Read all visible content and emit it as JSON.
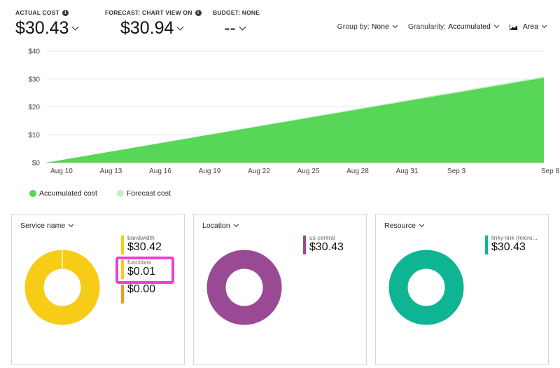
{
  "kpis": [
    {
      "label": "ACTUAL COST",
      "value": "$30.43",
      "has_info": true
    },
    {
      "label": "FORECAST: CHART VIEW ON",
      "value": "$30.94",
      "has_info": true
    },
    {
      "label": "BUDGET: NONE",
      "value": "--",
      "has_info": false
    }
  ],
  "toolbar": {
    "group_by_label": "Group by:",
    "group_by_value": "None",
    "granularity_label": "Granularity:",
    "granularity_value": "Accumulated",
    "chart_type_value": "Area"
  },
  "chart_data": {
    "type": "area",
    "x_ticks": [
      "Aug 10",
      "Aug 13",
      "Aug 16",
      "Aug 19",
      "Aug 22",
      "Aug 25",
      "Aug 28",
      "Aug 31",
      "Sep 3",
      "Sep 8"
    ],
    "y_ticks": [
      "$0",
      "$10",
      "$20",
      "$30",
      "$40"
    ],
    "ylim": [
      0,
      40
    ],
    "grid": true,
    "series": [
      {
        "name": "Accumulated cost",
        "color": "#57d657",
        "x_start_day": 0,
        "x_end_day": 30,
        "y_start": 0,
        "y_end": 30.43
      }
    ],
    "forecast": {
      "name": "Forecast cost",
      "color": "#c8efc8",
      "y_end": 30.94
    },
    "legend_position": "bottom-left"
  },
  "legend": [
    {
      "label": "Accumulated cost",
      "color": "#57d657"
    },
    {
      "label": "Forecast cost",
      "color": "#c8efc8"
    }
  ],
  "cards": [
    {
      "header": "Service name",
      "donut_color": "#f6cc17",
      "entries": [
        {
          "name": "bandwidth",
          "amount": "$30.42",
          "color": "#f6cc17"
        },
        {
          "name": "functions",
          "amount": "$0.01",
          "color": "#f6cc17"
        },
        {
          "name": "",
          "amount": "$0.00",
          "color": "#f29a1b"
        }
      ]
    },
    {
      "header": "Location",
      "donut_color": "#9a4a94",
      "entries": [
        {
          "name": "us central",
          "amount": "$30.43",
          "color": "#9a4a94"
        }
      ]
    },
    {
      "header": "Resource",
      "donut_color": "#0fb593",
      "entries": [
        {
          "name": "linky-link (micro...",
          "amount": "$30.43",
          "color": "#0fb593"
        }
      ]
    }
  ]
}
